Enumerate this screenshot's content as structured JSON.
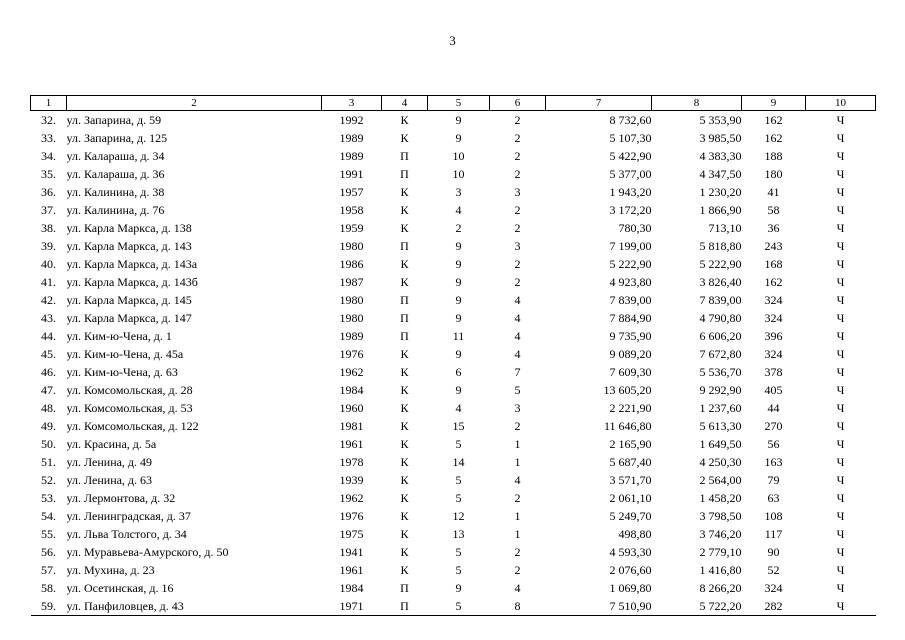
{
  "page": {
    "number": "3"
  },
  "table": {
    "headers": [
      "1",
      "2",
      "3",
      "4",
      "5",
      "6",
      "7",
      "8",
      "9",
      "10"
    ],
    "rows": [
      [
        "32.",
        "ул. Запарина, д. 59",
        "1992",
        "К",
        "9",
        "2",
        "8 732,60",
        "5 353,90",
        "162",
        "Ч"
      ],
      [
        "33.",
        "ул. Запарина, д. 125",
        "1989",
        "К",
        "9",
        "2",
        "5 107,30",
        "3 985,50",
        "162",
        "Ч"
      ],
      [
        "34.",
        "ул. Калараша, д. 34",
        "1989",
        "П",
        "10",
        "2",
        "5 422,90",
        "4 383,30",
        "188",
        "Ч"
      ],
      [
        "35.",
        "ул. Калараша, д. 36",
        "1991",
        "П",
        "10",
        "2",
        "5 377,00",
        "4 347,50",
        "180",
        "Ч"
      ],
      [
        "36.",
        "ул. Калинина, д. 38",
        "1957",
        "К",
        "3",
        "3",
        "1 943,20",
        "1 230,20",
        "41",
        "Ч"
      ],
      [
        "37.",
        "ул. Калинина, д. 76",
        "1958",
        "К",
        "4",
        "2",
        "3 172,20",
        "1 866,90",
        "58",
        "Ч"
      ],
      [
        "38.",
        "ул. Карла Маркса, д. 138",
        "1959",
        "К",
        "2",
        "2",
        "780,30",
        "713,10",
        "36",
        "Ч"
      ],
      [
        "39.",
        "ул. Карла Маркса, д. 143",
        "1980",
        "П",
        "9",
        "3",
        "7 199,00",
        "5 818,80",
        "243",
        "Ч"
      ],
      [
        "40.",
        "ул. Карла Маркса, д. 143а",
        "1986",
        "К",
        "9",
        "2",
        "5 222,90",
        "5 222,90",
        "168",
        "Ч"
      ],
      [
        "41.",
        "ул. Карла Маркса, д. 143б",
        "1987",
        "К",
        "9",
        "2",
        "4 923,80",
        "3 826,40",
        "162",
        "Ч"
      ],
      [
        "42.",
        "ул. Карла Маркса, д. 145",
        "1980",
        "П",
        "9",
        "4",
        "7 839,00",
        "7 839,00",
        "324",
        "Ч"
      ],
      [
        "43.",
        "ул. Карла Маркса, д. 147",
        "1980",
        "П",
        "9",
        "4",
        "7 884,90",
        "4 790,80",
        "324",
        "Ч"
      ],
      [
        "44.",
        "ул. Ким-ю-Чена, д. 1",
        "1989",
        "П",
        "11",
        "4",
        "9 735,90",
        "6 606,20",
        "396",
        "Ч"
      ],
      [
        "45.",
        "ул. Ким-ю-Чена, д. 45а",
        "1976",
        "К",
        "9",
        "4",
        "9 089,20",
        "7 672,80",
        "324",
        "Ч"
      ],
      [
        "46.",
        "ул. Ким-ю-Чена, д. 63",
        "1962",
        "К",
        "6",
        "7",
        "7 609,30",
        "5 536,70",
        "378",
        "Ч"
      ],
      [
        "47.",
        "ул. Комсомольская, д. 28",
        "1984",
        "К",
        "9",
        "5",
        "13 605,20",
        "9 292,90",
        "405",
        "Ч"
      ],
      [
        "48.",
        "ул. Комсомольская, д. 53",
        "1960",
        "К",
        "4",
        "3",
        "2 221,90",
        "1 237,60",
        "44",
        "Ч"
      ],
      [
        "49.",
        "ул. Комсомольская, д. 122",
        "1981",
        "К",
        "15",
        "2",
        "11 646,80",
        "5 613,30",
        "270",
        "Ч"
      ],
      [
        "50.",
        "ул. Красина, д. 5а",
        "1961",
        "К",
        "5",
        "1",
        "2 165,90",
        "1 649,50",
        "56",
        "Ч"
      ],
      [
        "51.",
        "ул. Ленина, д. 49",
        "1978",
        "К",
        "14",
        "1",
        "5 687,40",
        "4 250,30",
        "163",
        "Ч"
      ],
      [
        "52.",
        "ул. Ленина, д. 63",
        "1939",
        "К",
        "5",
        "4",
        "3 571,70",
        "2 564,00",
        "79",
        "Ч"
      ],
      [
        "53.",
        "ул. Лермонтова, д. 32",
        "1962",
        "К",
        "5",
        "2",
        "2 061,10",
        "1 458,20",
        "63",
        "Ч"
      ],
      [
        "54.",
        "ул. Ленинградская, д. 37",
        "1976",
        "К",
        "12",
        "1",
        "5 249,70",
        "3 798,50",
        "108",
        "Ч"
      ],
      [
        "55.",
        "ул. Льва Толстого, д. 34",
        "1975",
        "К",
        "13",
        "1",
        "498,80",
        "3 746,20",
        "117",
        "Ч"
      ],
      [
        "56.",
        "ул. Муравьева-Амурского, д. 50",
        "1941",
        "К",
        "5",
        "2",
        "4 593,30",
        "2 779,10",
        "90",
        "Ч"
      ],
      [
        "57.",
        "ул. Мухина, д. 23",
        "1961",
        "К",
        "5",
        "2",
        "2 076,60",
        "1 416,80",
        "52",
        "Ч"
      ],
      [
        "58.",
        "ул. Осетинская, д. 16",
        "1984",
        "П",
        "9",
        "4",
        "1 069,80",
        "8 266,20",
        "324",
        "Ч"
      ],
      [
        "59.",
        "ул. Панфиловцев, д. 43",
        "1971",
        "П",
        "5",
        "8",
        "7 510,90",
        "5 722,20",
        "282",
        "Ч"
      ]
    ]
  }
}
